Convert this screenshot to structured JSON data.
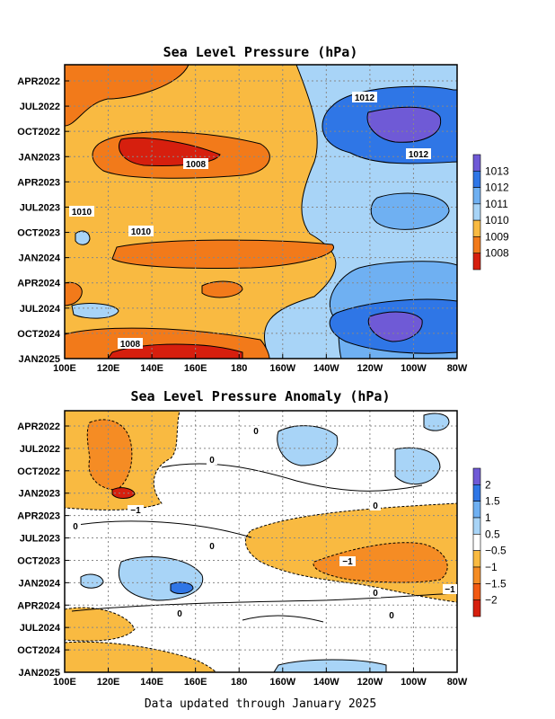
{
  "chart_data": [
    {
      "type": "heatmap",
      "title": "Sea Level Pressure (hPa)",
      "x_ticks": [
        "100E",
        "120E",
        "140E",
        "160E",
        "180",
        "160W",
        "140W",
        "120W",
        "100W",
        "80W"
      ],
      "y_ticks": [
        "APR2022",
        "JUL2022",
        "OCT2022",
        "JAN2023",
        "APR2023",
        "JUL2023",
        "OCT2023",
        "JAN2024",
        "APR2024",
        "JUL2024",
        "OCT2024",
        "JAN2025"
      ],
      "colorbar": {
        "levels": [
          "1013",
          "1012",
          "1011",
          "1010",
          "1009",
          "1008"
        ],
        "colors": [
          "#6f5ad6",
          "#2f76e6",
          "#6fb0f2",
          "#a8d4f7",
          "#f9ba41",
          "#f27a1a",
          "#d61f0e"
        ]
      },
      "contour_labels": [
        "1012",
        "1012",
        "1008",
        "1010",
        "1010",
        "1008"
      ],
      "grid": true
    },
    {
      "type": "heatmap",
      "title": "Sea Level Pressure Anomaly (hPa)",
      "x_ticks": [
        "100E",
        "120E",
        "140E",
        "160E",
        "180",
        "160W",
        "140W",
        "120W",
        "100W",
        "80W"
      ],
      "y_ticks": [
        "APR2022",
        "JUL2022",
        "OCT2022",
        "JAN2023",
        "APR2023",
        "JUL2023",
        "OCT2023",
        "JAN2024",
        "APR2024",
        "JUL2024",
        "OCT2024",
        "JAN2025"
      ],
      "colorbar": {
        "levels": [
          "2",
          "1.5",
          "1",
          "0.5",
          "−0.5",
          "−1",
          "−1.5",
          "−2"
        ],
        "colors": [
          "#6f5ad6",
          "#2f76e6",
          "#6fb0f2",
          "#a8d4f7",
          "#ffffff",
          "#f9ba41",
          "#f58c24",
          "#f25a12",
          "#d61f0e"
        ]
      },
      "contour_labels": [
        "0",
        "0",
        "−1",
        "0",
        "0",
        "0",
        "−1",
        "0",
        "0",
        "0",
        "−1"
      ],
      "grid": true
    }
  ],
  "footer": "Data updated through January 2025"
}
